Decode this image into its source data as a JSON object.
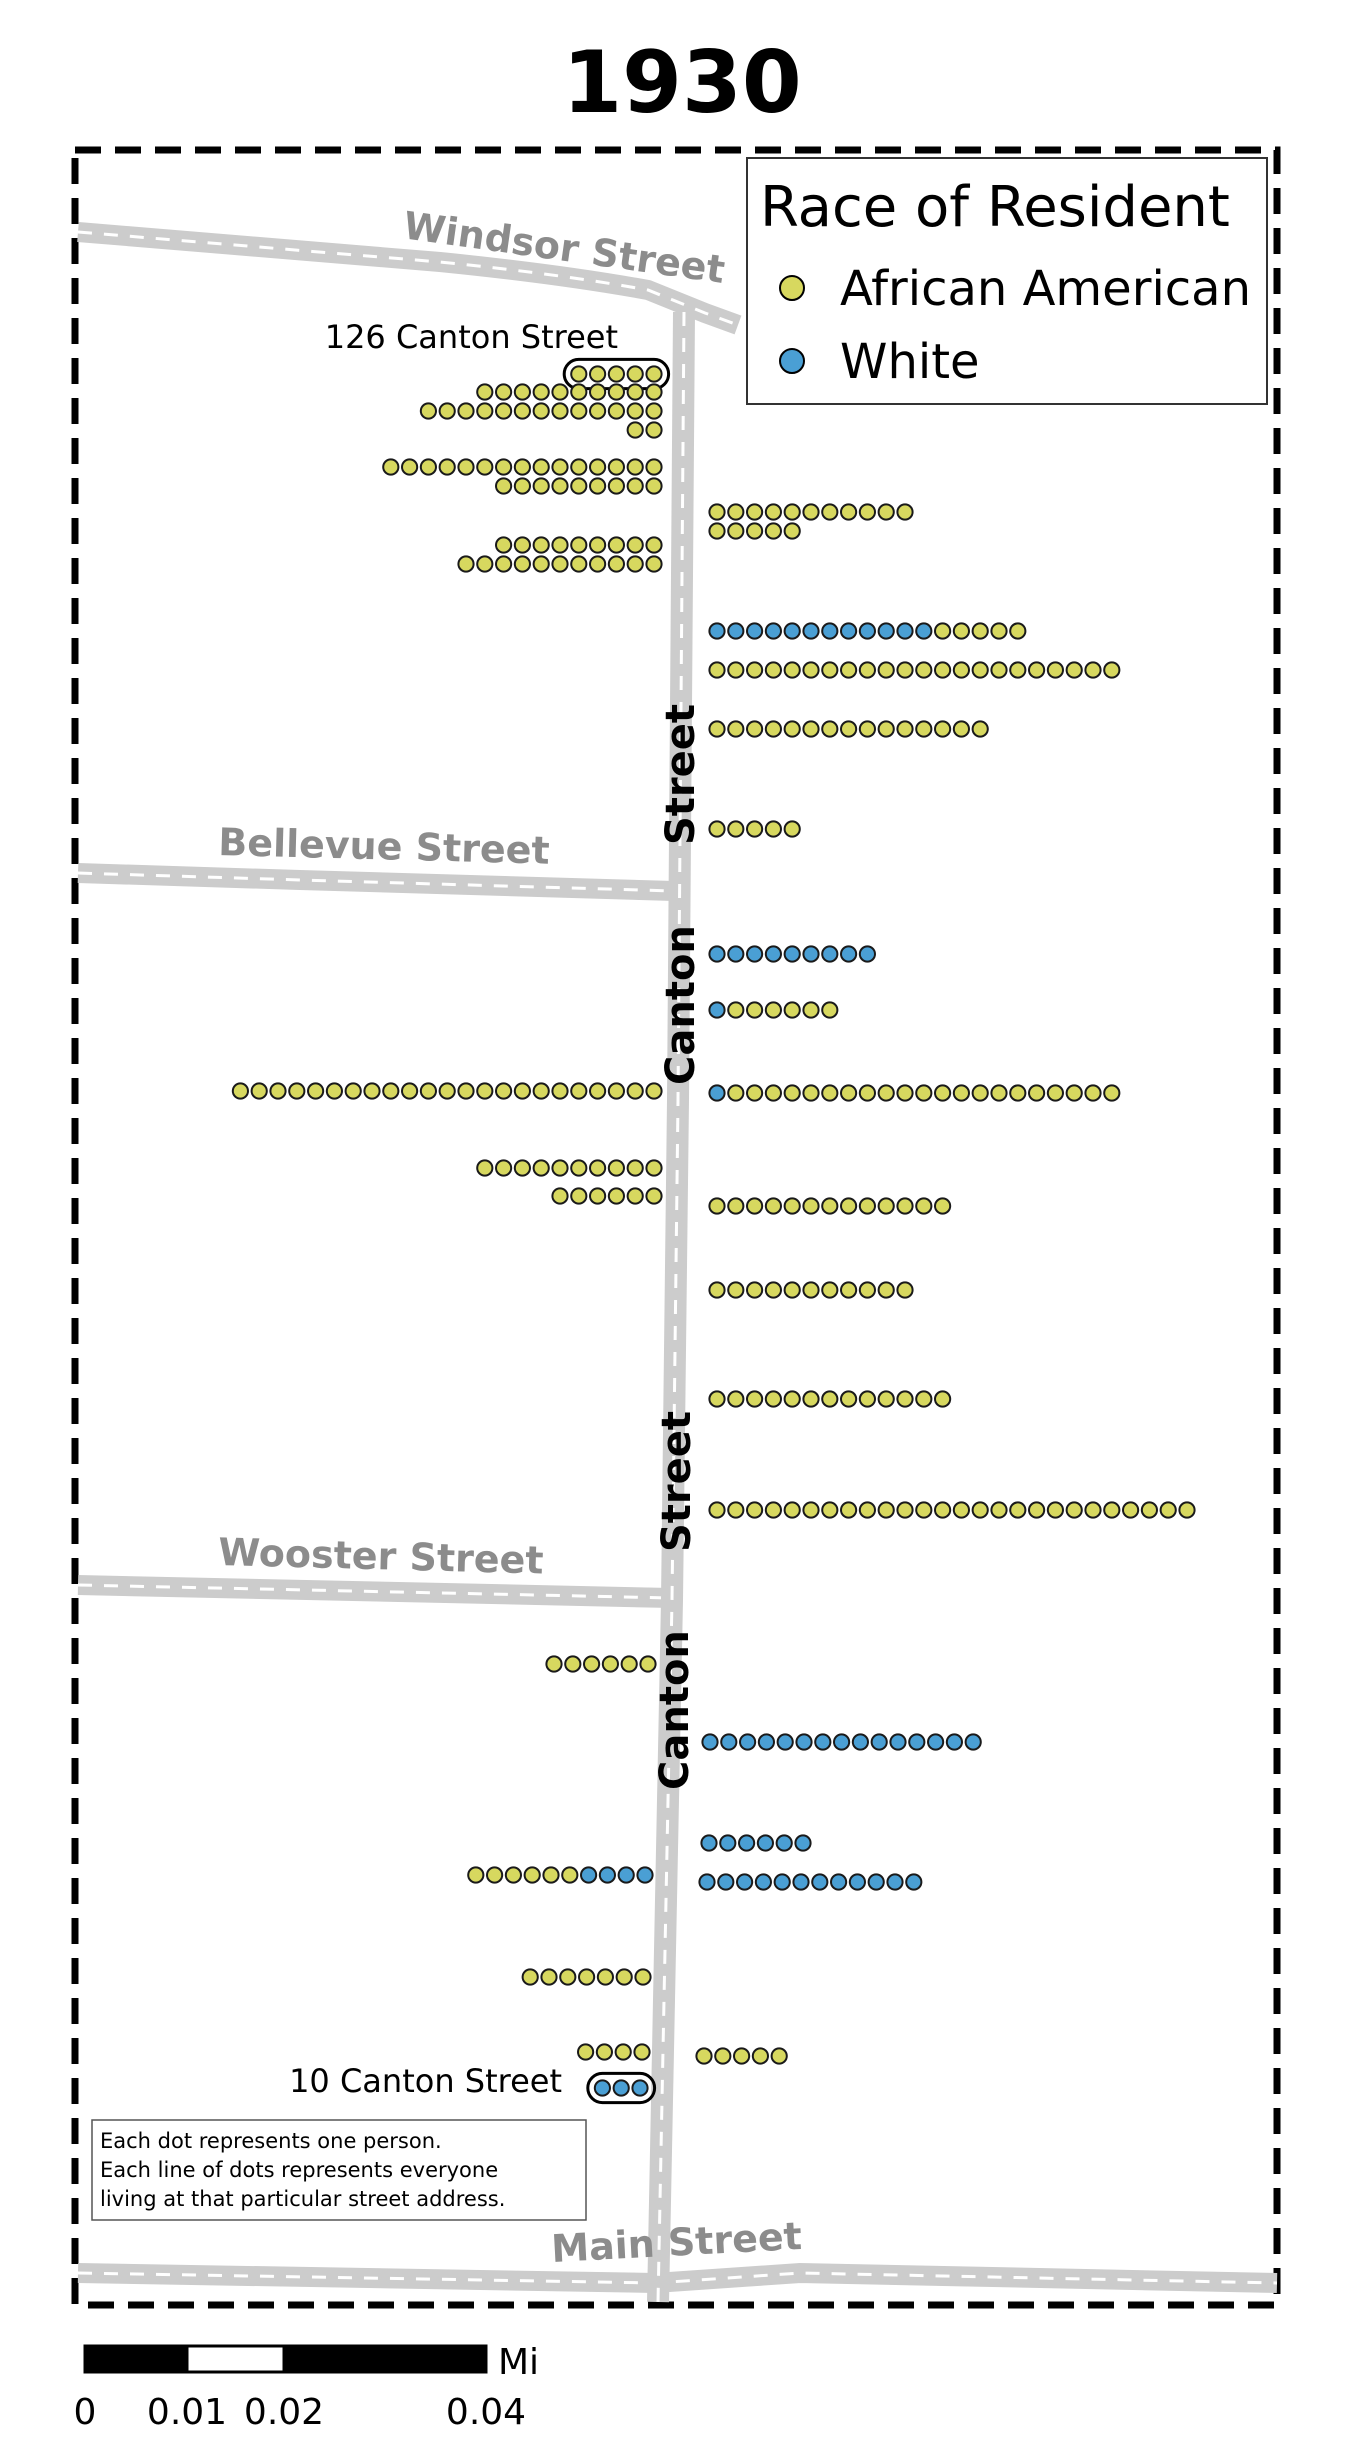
{
  "title": "1930",
  "legend": {
    "title": "Race of Resident",
    "items": [
      {
        "label": "African American",
        "color": "#d7d85f"
      },
      {
        "label": "White",
        "color": "#4a9fd4"
      }
    ]
  },
  "streets": {
    "windsor": "Windsor Street",
    "bellevue": "Bellevue Street",
    "wooster": "Wooster Street",
    "main": "Main Street",
    "canton_word_1": "Canton",
    "canton_word_2": "Street"
  },
  "addresses": {
    "top": "126 Canton Street",
    "bottom": "10 Canton Street"
  },
  "note": [
    "Each dot represents one person.",
    "Each line of dots represents everyone",
    "living at that particular street address."
  ],
  "scale_bar": {
    "unit": "Mi",
    "ticks": [
      "0",
      "0.01",
      "0.02",
      "0.04"
    ]
  },
  "households": [
    {
      "side": "west",
      "dots": "AAAAA",
      "highlight": "126 Canton Street"
    },
    {
      "side": "west",
      "dots": "AAAAAAAAAA"
    },
    {
      "side": "west",
      "dots": "AAAAAAAAAAAAA"
    },
    {
      "side": "west",
      "dots": "AA"
    },
    {
      "side": "west",
      "dots": "AAAAAAAAAAAAAAA"
    },
    {
      "side": "west",
      "dots": "AAAAAAAAA"
    },
    {
      "side": "west",
      "dots": "AAAAAAAAA"
    },
    {
      "side": "west",
      "dots": "AAAAAAAAAAA"
    },
    {
      "side": "east",
      "dots": "AAAAAAAAAAA"
    },
    {
      "side": "east",
      "dots": "AAAAA"
    },
    {
      "side": "east",
      "dots": "WWWWWWWWWWWWAAAAA"
    },
    {
      "side": "east",
      "dots": "AAAAAAAAAAAAAAAAAAAAAA"
    },
    {
      "side": "east",
      "dots": "AAAAAAAAAAAAAAA"
    },
    {
      "side": "east",
      "dots": "AAAAA"
    },
    {
      "side": "east",
      "dots": "WWWWWWWWW"
    },
    {
      "side": "east",
      "dots": "WAAAAAA"
    },
    {
      "side": "west",
      "dots": "AAAAAAAAAAAAAAAAAAAAAAA"
    },
    {
      "side": "east",
      "dots": "WAAAAAAAAAAAAAAAAAAAAA"
    },
    {
      "side": "west",
      "dots": "AAAAAAAAAA"
    },
    {
      "side": "west",
      "dots": "AAAAAA"
    },
    {
      "side": "east",
      "dots": "AAAAAAAAAAAAA"
    },
    {
      "side": "east",
      "dots": "AAAAAAAAAAA"
    },
    {
      "side": "east",
      "dots": "AAAAAAAAAAAAA"
    },
    {
      "side": "east",
      "dots": "AAAAAAAAAAAAAAAAAAAAAAAAAA"
    },
    {
      "side": "west",
      "dots": "AAAAAA"
    },
    {
      "side": "east",
      "dots": "WWWWWWWWWWWWWWW"
    },
    {
      "side": "east",
      "dots": "WWWWWW"
    },
    {
      "side": "west",
      "dots": "AAAAAAWWWW"
    },
    {
      "side": "east",
      "dots": "WWWWWWWWWWWW"
    },
    {
      "side": "west",
      "dots": "AAAAAAA"
    },
    {
      "side": "west",
      "dots": "AAAA"
    },
    {
      "side": "east",
      "dots": "AAAAA"
    },
    {
      "side": "west",
      "dots": "WWW",
      "highlight": "10 Canton Street"
    }
  ]
}
